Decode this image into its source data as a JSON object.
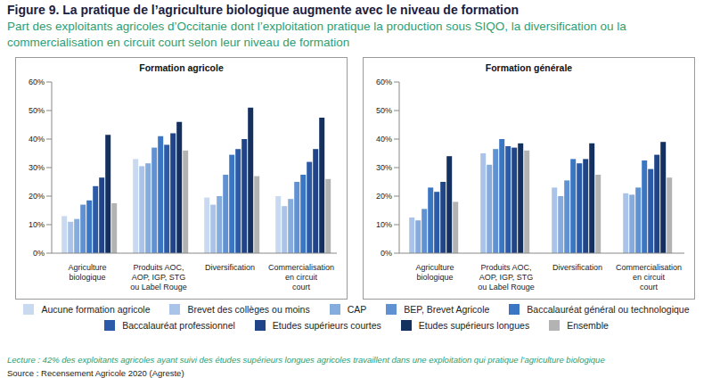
{
  "title": "Figure 9. La pratique de l’agriculture biologique augmente avec le niveau de formation",
  "subtitle": "Part des exploitants agricoles d’Occitanie dont l’exploitation pratique la production sous SIQO, la diversification ou la commercialisation en circuit court selon leur niveau de formation",
  "chart_data": [
    {
      "type": "bar",
      "title": "Formation agricole",
      "categories": [
        "Agriculture biologique",
        "Produits AOC, AOP, IGP, STG ou Label Rouge",
        "Diversification",
        "Commercialisation en circuit court"
      ],
      "ylim": [
        0,
        60
      ],
      "yticks": [
        {
          "value": 0,
          "label": "0%"
        },
        {
          "value": 10,
          "label": "10%"
        },
        {
          "value": 20,
          "label": "20%"
        },
        {
          "value": 30,
          "label": "30%"
        },
        {
          "value": 40,
          "label": "40%"
        },
        {
          "value": 50,
          "label": "50%"
        },
        {
          "value": 60,
          "label": "60%"
        }
      ],
      "grid": false,
      "series": [
        {
          "name": "Aucune formation agricole",
          "color": "#c9d9ef",
          "values": [
            13,
            33,
            19.5,
            20
          ]
        },
        {
          "name": "Brevet des collèges ou moins",
          "color": "#a9c4e8",
          "values": [
            11,
            30.5,
            17,
            16.5
          ]
        },
        {
          "name": "CAP",
          "color": "#86abdd",
          "values": [
            12,
            31.5,
            20,
            19
          ]
        },
        {
          "name": "BEP, Brevet Agricole",
          "color": "#5f91d3",
          "values": [
            17,
            37,
            27.5,
            25
          ]
        },
        {
          "name": "Baccalauréat général ou technologique",
          "color": "#3b76c4",
          "values": [
            18.5,
            41,
            34.5,
            27.5
          ]
        },
        {
          "name": "Baccalauréat professionnel",
          "color": "#2b5ba8",
          "values": [
            23.5,
            38,
            36.5,
            32
          ]
        },
        {
          "name": "Etudes supérieurs courtes",
          "color": "#1f4588",
          "values": [
            26.5,
            42,
            40,
            36.5
          ]
        },
        {
          "name": "Etudes supérieurs longues",
          "color": "#14305f",
          "values": [
            41.5,
            46,
            51,
            47.5
          ]
        },
        {
          "name": "Ensemble",
          "color": "#b3b3b3",
          "values": [
            17.5,
            36,
            27,
            26
          ]
        }
      ]
    },
    {
      "type": "bar",
      "title": "Formation générale",
      "categories": [
        "Agriculture biologique",
        "Produits AOC, AOP, IGP, STG ou Label Rouge",
        "Diversification",
        "Commercialisation en circuit court"
      ],
      "ylim": [
        0,
        60
      ],
      "yticks": [
        {
          "value": 0,
          "label": "0%"
        },
        {
          "value": 10,
          "label": "10%"
        },
        {
          "value": 20,
          "label": "20%"
        },
        {
          "value": 30,
          "label": "30%"
        },
        {
          "value": 40,
          "label": "40%"
        },
        {
          "value": 50,
          "label": "50%"
        },
        {
          "value": 60,
          "label": "60%"
        }
      ],
      "grid": false,
      "series": [
        {
          "name": "Aucune formation agricole",
          "color": "#c9d9ef",
          "values": [
            null,
            null,
            null,
            null
          ]
        },
        {
          "name": "Brevet des collèges ou moins",
          "color": "#a9c4e8",
          "values": [
            12.5,
            35,
            23,
            21
          ]
        },
        {
          "name": "CAP",
          "color": "#86abdd",
          "values": [
            11.5,
            31,
            20,
            20.5
          ]
        },
        {
          "name": "BEP, Brevet Agricole",
          "color": "#5f91d3",
          "values": [
            15.5,
            36.5,
            25.5,
            23
          ]
        },
        {
          "name": "Baccalauréat général ou technologique",
          "color": "#3b76c4",
          "values": [
            23,
            40,
            33,
            32.5
          ]
        },
        {
          "name": "Baccalauréat professionnel",
          "color": "#2b5ba8",
          "values": [
            21.5,
            37.5,
            31.5,
            29.5
          ]
        },
        {
          "name": "Etudes supérieurs courtes",
          "color": "#1f4588",
          "values": [
            25,
            37,
            33,
            34.5
          ]
        },
        {
          "name": "Etudes supérieurs longues",
          "color": "#14305f",
          "values": [
            34,
            38.5,
            38.5,
            39
          ]
        },
        {
          "name": "Ensemble",
          "color": "#b3b3b3",
          "values": [
            18,
            36,
            27.5,
            26.5
          ]
        }
      ]
    }
  ],
  "note": "Lecture : 42% des exploitants agricoles ayant suivi des études supérieurs longues agricoles travaillent dans une exploitation qui pratique l’agriculture biologique",
  "source": "Source : Recensement Agricole 2020 (Agreste)"
}
